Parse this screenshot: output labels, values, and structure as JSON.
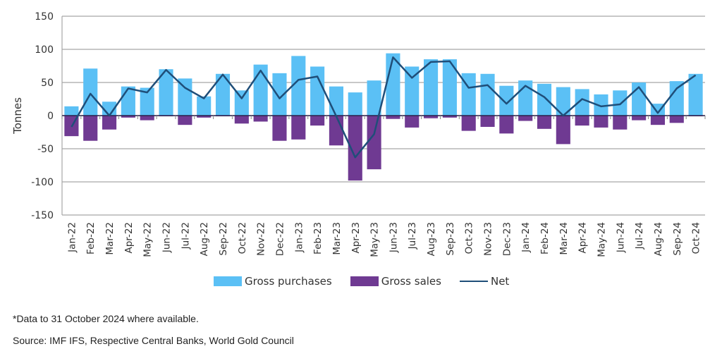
{
  "chart_data": {
    "type": "bar",
    "title": "",
    "xlabel": "",
    "ylabel": "Tonnes",
    "ylim": [
      -150,
      150
    ],
    "yticks": [
      150,
      100,
      50,
      0,
      -50,
      -100,
      -150
    ],
    "grid": true,
    "legend_position": "bottom",
    "categories": [
      "Jan-22",
      "Feb-22",
      "Mar-22",
      "Apr-22",
      "May-22",
      "Jun-22",
      "Jul-22",
      "Aug-22",
      "Sep-22",
      "Oct-22",
      "Nov-22",
      "Dec-22",
      "Jan-23",
      "Feb-23",
      "Mar-23",
      "Apr-23",
      "May-23",
      "Jun-23",
      "Jul-23",
      "Aug-23",
      "Sep-23",
      "Oct-23",
      "Nov-23",
      "Dec-23",
      "Jan-24",
      "Feb-24",
      "Mar-24",
      "Apr-24",
      "May-24",
      "Jun-24",
      "Jul-24",
      "Aug-24",
      "Sep-24",
      "Oct-24"
    ],
    "series": [
      {
        "name": "Gross purchases",
        "kind": "bar",
        "color": "#5BC0F5",
        "values": [
          14,
          71,
          21,
          44,
          42,
          70,
          56,
          29,
          63,
          38,
          77,
          64,
          90,
          74,
          44,
          35,
          53,
          94,
          74,
          85,
          85,
          64,
          63,
          45,
          53,
          48,
          43,
          40,
          32,
          38,
          50,
          18,
          52,
          63
        ]
      },
      {
        "name": "Gross sales",
        "kind": "bar",
        "color": "#6F3A92",
        "values": [
          -31,
          -38,
          -21,
          -3,
          -7,
          -1,
          -14,
          -3,
          -1,
          -12,
          -9,
          -38,
          -36,
          -15,
          -45,
          -98,
          -81,
          -5,
          -18,
          -4,
          -3,
          -23,
          -17,
          -27,
          -8,
          -20,
          -43,
          -15,
          -18,
          -21,
          -7,
          -14,
          -11,
          -1
        ]
      },
      {
        "name": "Net",
        "kind": "line",
        "color": "#1F4E79",
        "values": [
          -17,
          33,
          0,
          41,
          35,
          69,
          42,
          26,
          62,
          26,
          68,
          26,
          54,
          59,
          -1,
          -63,
          -28,
          88,
          57,
          81,
          82,
          42,
          46,
          18,
          45,
          28,
          0,
          25,
          14,
          17,
          43,
          4,
          41,
          61
        ]
      }
    ]
  },
  "legend": {
    "purchases_label": "Gross purchases",
    "sales_label": "Gross sales",
    "net_label": "Net"
  },
  "footnotes": {
    "note": "*Data to 31 October 2024 where available.",
    "source": "Source: IMF IFS, Respective Central Banks, World Gold Council"
  }
}
